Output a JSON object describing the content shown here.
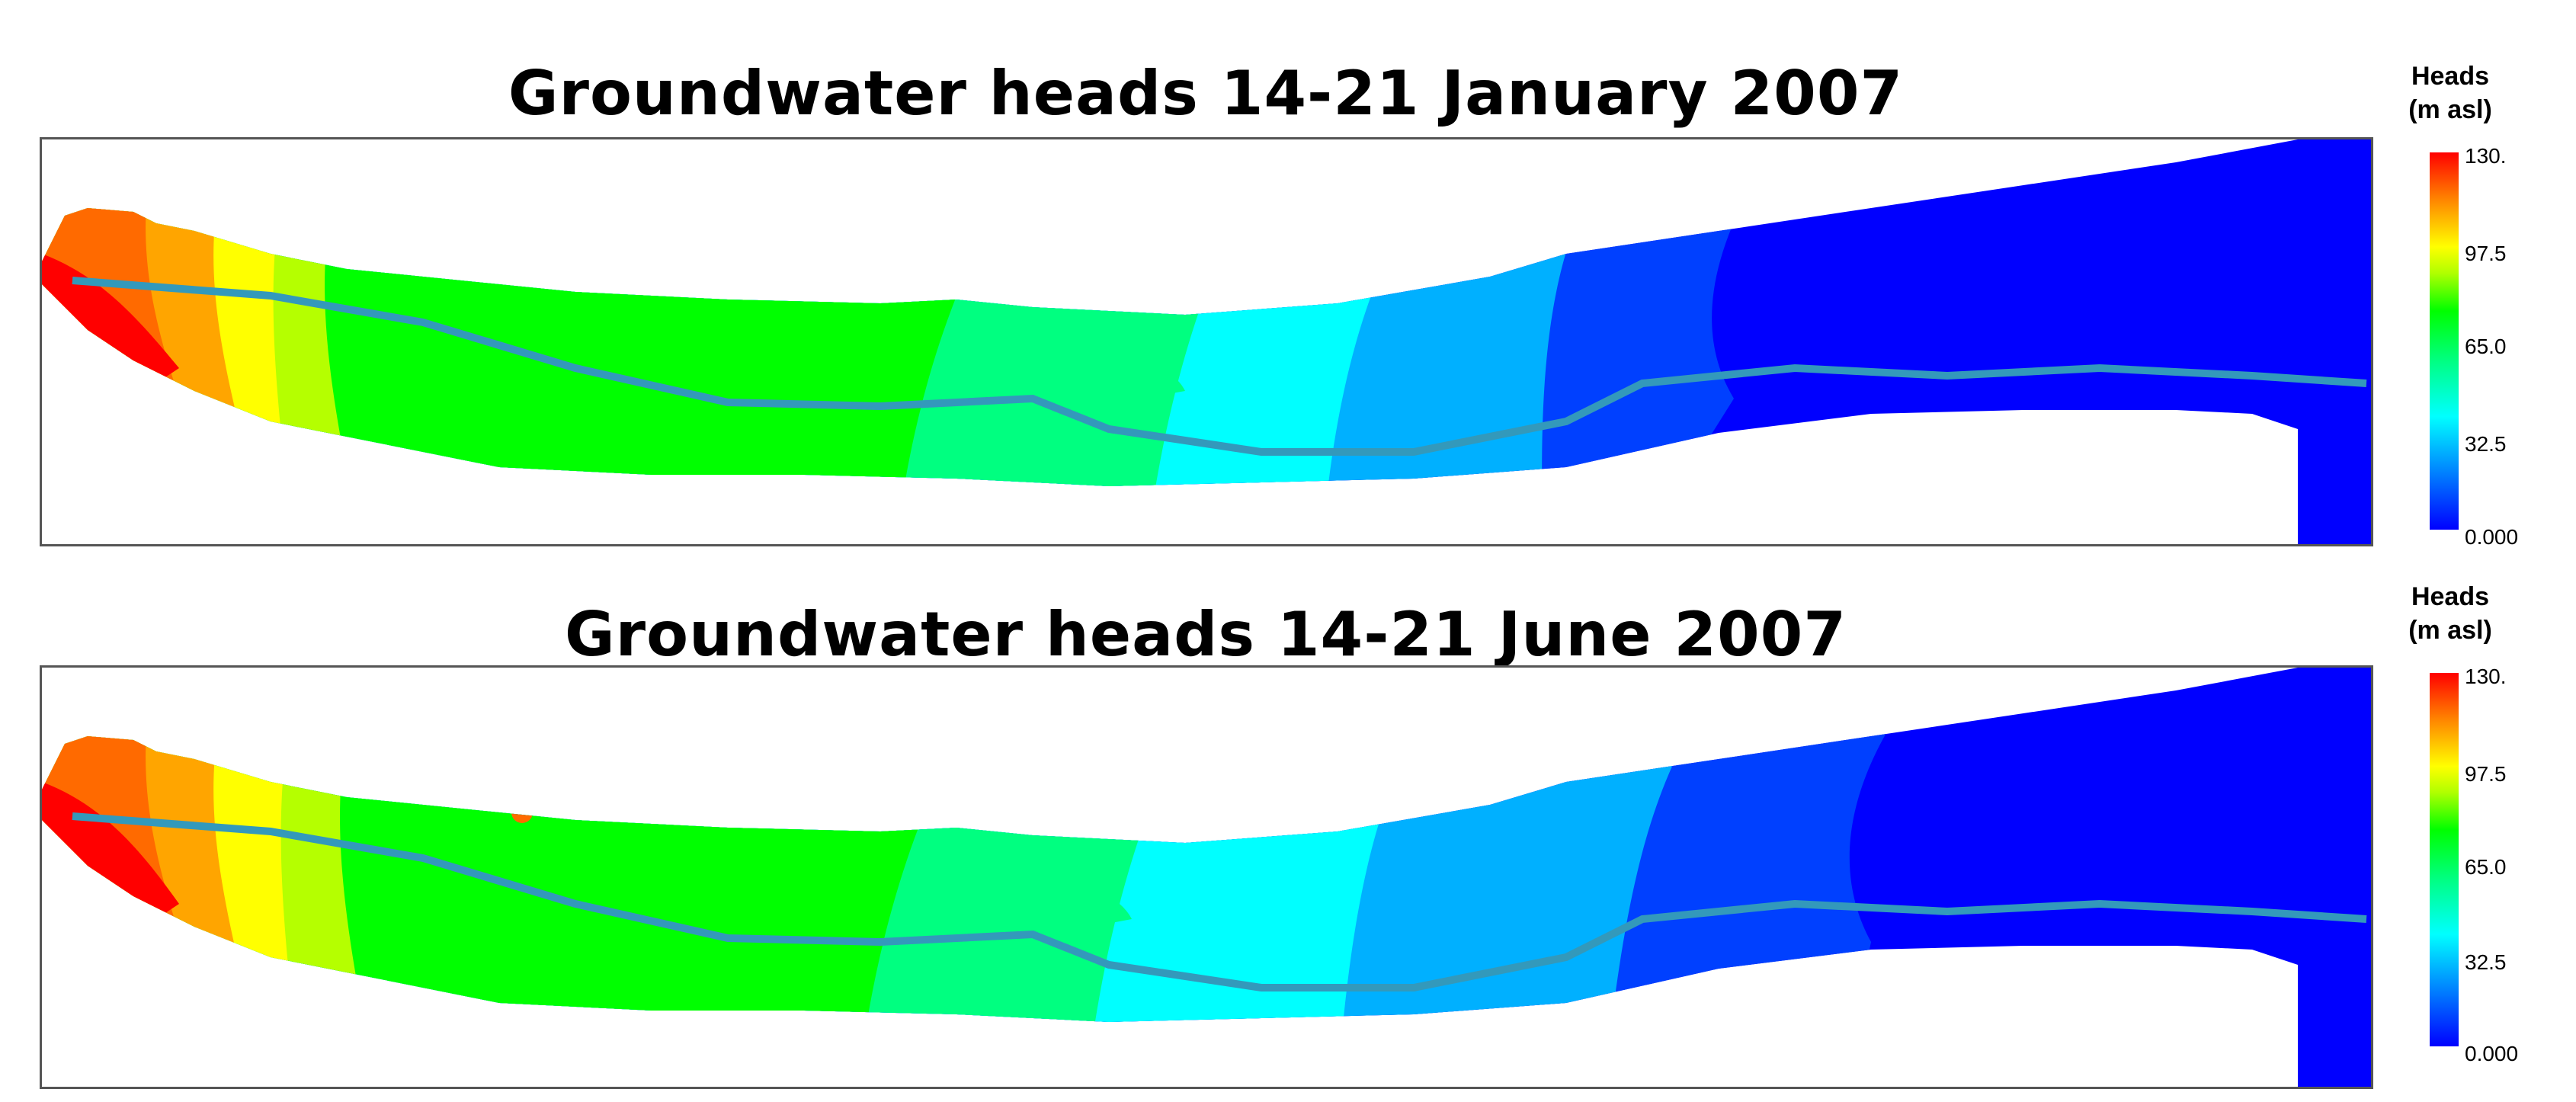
{
  "maps": [
    {
      "title": "Groundwater heads 14-21 January 2007",
      "legend": {
        "title_line1": "Heads",
        "title_line2": "(m asl)",
        "ticks": [
          "130.",
          "97.5",
          "65.0",
          "32.5",
          "0.000"
        ]
      }
    },
    {
      "title": "Groundwater heads 14-21 June 2007",
      "legend": {
        "title_line1": "Heads",
        "title_line2": "(m asl)",
        "ticks": [
          "130.",
          "97.5",
          "65.0",
          "32.5",
          "0.000"
        ]
      }
    }
  ],
  "colors": {
    "h130": "#ff0000",
    "h110": "#ff6a00",
    "h100": "#ffa500",
    "h97": "#ffff00",
    "h85": "#b5ff00",
    "h70": "#00ff00",
    "h55": "#00ff80",
    "h40": "#00ffff",
    "h25": "#00b0ff",
    "h10": "#0040ff",
    "h0": "#0000ff",
    "river": "#3399bb"
  }
}
